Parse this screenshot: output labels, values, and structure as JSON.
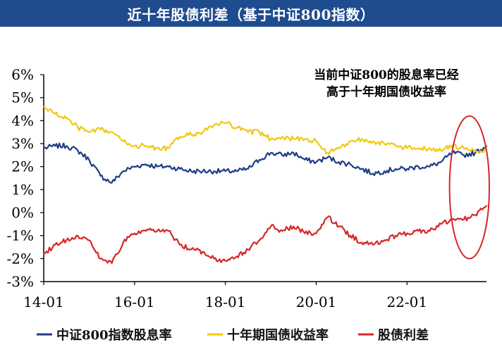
{
  "chart_data": {
    "type": "line",
    "title": "近十年股债利差（基于中证800指数）",
    "annotation": "当前中证800的股息率已经高于十年期国债收益率",
    "annotation_lines": [
      "当前中证800的股息率已经",
      "高于十年期国债收益率"
    ],
    "ylim": [
      -3,
      6
    ],
    "yticks": [
      "6%",
      "5%",
      "4%",
      "3%",
      "2%",
      "1%",
      "0%",
      "-1%",
      "-2%",
      "-3%"
    ],
    "xlim": [
      "2014-01",
      "2023-10"
    ],
    "xticks": [
      {
        "label": "14-01",
        "date": "2014-01"
      },
      {
        "label": "16-01",
        "date": "2016-01"
      },
      {
        "label": "18-01",
        "date": "2018-01"
      },
      {
        "label": "20-01",
        "date": "2020-01"
      },
      {
        "label": "22-01",
        "date": "2022-01"
      }
    ],
    "grid": false,
    "legend_position": "bottom",
    "highlight": {
      "shape": "ellipse",
      "color": "#d62728",
      "x_range": [
        "2023-01",
        "2023-10"
      ],
      "y_range": [
        -2.0,
        4.2
      ]
    },
    "x": [
      "2014-01",
      "2014-04",
      "2014-07",
      "2014-10",
      "2015-01",
      "2015-04",
      "2015-07",
      "2015-10",
      "2016-01",
      "2016-04",
      "2016-07",
      "2016-10",
      "2017-01",
      "2017-04",
      "2017-07",
      "2017-10",
      "2018-01",
      "2018-04",
      "2018-07",
      "2018-10",
      "2019-01",
      "2019-04",
      "2019-07",
      "2019-10",
      "2020-01",
      "2020-04",
      "2020-07",
      "2020-10",
      "2021-01",
      "2021-04",
      "2021-07",
      "2021-10",
      "2022-01",
      "2022-04",
      "2022-07",
      "2022-10",
      "2023-01",
      "2023-04",
      "2023-07",
      "2023-10"
    ],
    "series": [
      {
        "name": "中证800指数股息率",
        "color": "#1f3c88",
        "values": [
          2.8,
          2.9,
          2.9,
          2.7,
          2.3,
          1.6,
          1.3,
          1.8,
          2.0,
          2.1,
          2.0,
          2.0,
          1.9,
          1.8,
          1.8,
          1.8,
          1.8,
          1.8,
          1.9,
          2.3,
          2.6,
          2.5,
          2.6,
          2.3,
          2.2,
          2.4,
          2.2,
          2.1,
          1.9,
          1.7,
          1.8,
          1.9,
          1.9,
          2.0,
          2.0,
          2.2,
          2.6,
          2.5,
          2.6,
          2.9
        ]
      },
      {
        "name": "十年期国债收益率",
        "color": "#f2c811",
        "values": [
          4.6,
          4.3,
          4.1,
          3.7,
          3.5,
          3.6,
          3.5,
          3.1,
          2.9,
          2.9,
          2.8,
          2.8,
          3.3,
          3.4,
          3.5,
          3.8,
          3.9,
          3.7,
          3.5,
          3.5,
          3.2,
          3.3,
          3.2,
          3.2,
          3.1,
          2.6,
          2.8,
          3.1,
          3.2,
          3.1,
          3.0,
          2.9,
          2.8,
          2.8,
          2.8,
          2.7,
          2.9,
          2.8,
          2.7,
          2.7
        ]
      },
      {
        "name": "股债利差",
        "color": "#d62728",
        "values": [
          -1.8,
          -1.4,
          -1.2,
          -1.0,
          -1.2,
          -2.0,
          -2.2,
          -1.3,
          -0.9,
          -0.8,
          -0.8,
          -0.8,
          -1.4,
          -1.6,
          -1.7,
          -2.0,
          -2.1,
          -1.9,
          -1.6,
          -1.2,
          -0.6,
          -0.8,
          -0.6,
          -0.9,
          -0.9,
          -0.2,
          -0.6,
          -1.0,
          -1.3,
          -1.4,
          -1.2,
          -1.0,
          -0.9,
          -0.8,
          -0.8,
          -0.5,
          -0.3,
          -0.3,
          -0.1,
          0.3
        ]
      }
    ]
  }
}
